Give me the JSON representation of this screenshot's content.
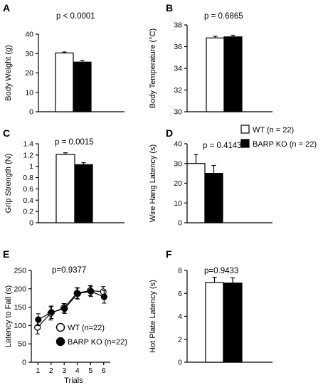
{
  "legend": {
    "wt": "WT (n = 22)",
    "ko": "BARP KO (n = 22)"
  },
  "colors": {
    "wt": "#ffffff",
    "ko": "#000000",
    "stroke": "#000000"
  },
  "chart_data": [
    {
      "panel": "A",
      "type": "bar",
      "categories": [
        "WT",
        "BARP KO"
      ],
      "values": [
        30.3,
        25.6
      ],
      "errors": [
        0.5,
        0.8
      ],
      "ylabel": "Body Weight (g)",
      "ylim": [
        0,
        40
      ],
      "yticks": [
        "0",
        "10",
        "20",
        "30",
        "40"
      ],
      "annotation": "p < 0.0001"
    },
    {
      "panel": "B",
      "type": "bar",
      "categories": [
        "WT",
        "BARP KO"
      ],
      "values": [
        36.8,
        36.9
      ],
      "errors": [
        0.15,
        0.15
      ],
      "ylabel": "Body Temperature (°C)",
      "ylim": [
        30,
        38
      ],
      "yticks": [
        "30",
        "32",
        "34",
        "36",
        "38"
      ],
      "annotation": "p = 0.6865"
    },
    {
      "panel": "C",
      "type": "bar",
      "categories": [
        "WT",
        "BARP KO"
      ],
      "values": [
        1.21,
        1.03
      ],
      "errors": [
        0.03,
        0.035
      ],
      "ylabel": "Grip Strength (N)",
      "ylim": [
        0,
        1.4
      ],
      "yticks": [
        "0",
        "0.2",
        "0.4",
        "0.6",
        "0.8",
        "1",
        "1.2",
        "1.4"
      ],
      "annotation": "p = 0.0015"
    },
    {
      "panel": "D",
      "type": "bar",
      "categories": [
        "WT",
        "BARP KO"
      ],
      "values": [
        30,
        25
      ],
      "errors": [
        4.5,
        4
      ],
      "ylabel": "Wire Hang Latency (s)",
      "ylim": [
        0,
        40
      ],
      "yticks": [
        "0",
        "10",
        "20",
        "30",
        "40"
      ],
      "annotation": "p = 0.4143"
    },
    {
      "panel": "E",
      "type": "line",
      "x": [
        1,
        2,
        3,
        4,
        5,
        6
      ],
      "xticks": [
        "1",
        "2",
        "3",
        "4",
        "5",
        "6"
      ],
      "series": [
        {
          "name": "WT (n=22)",
          "values": [
            95,
            133,
            148,
            188,
            195,
            192
          ],
          "errors": [
            18,
            18,
            12,
            15,
            14,
            14
          ]
        },
        {
          "name": "BARP KO (n=22)",
          "values": [
            116,
            136,
            146,
            187,
            193,
            178
          ],
          "errors": [
            16,
            17,
            13,
            15,
            14,
            17
          ]
        }
      ],
      "xlabel": "Trials",
      "ylabel": "Latency to Fall (s)",
      "ylim": [
        0,
        250
      ],
      "yticks": [
        "0",
        "50",
        "100",
        "150",
        "200",
        "250"
      ],
      "annotation": "p=0.9377"
    },
    {
      "panel": "F",
      "type": "bar",
      "categories": [
        "WT",
        "BARP KO"
      ],
      "values": [
        6.95,
        6.9
      ],
      "errors": [
        0.45,
        0.45
      ],
      "ylabel": "Hot Plate Latency (s)",
      "ylim": [
        0,
        8
      ],
      "yticks": [
        "0",
        "2",
        "4",
        "6",
        "8"
      ],
      "annotation": "p=0.9433"
    }
  ]
}
